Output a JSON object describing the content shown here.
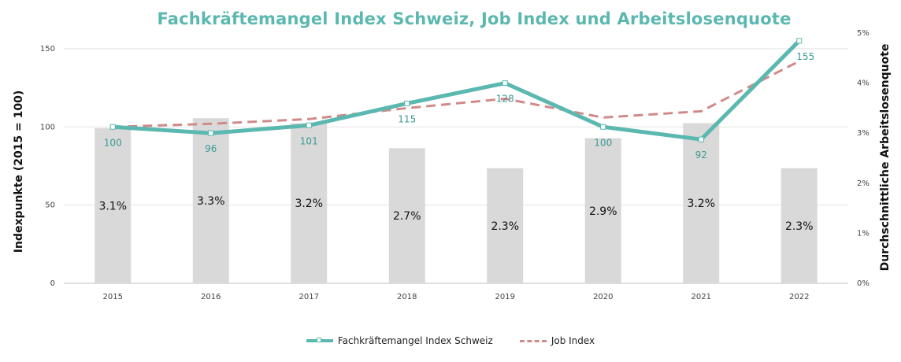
{
  "chart_data": {
    "type": "bar+line",
    "title": "Fachkräftemangel Index Schweiz, Job Index und Arbeitslosenquote",
    "categories": [
      "2015",
      "2016",
      "2017",
      "2018",
      "2019",
      "2020",
      "2021",
      "2022"
    ],
    "ylabel": "Indexpunkte (2015 = 100)",
    "y2label": "Durchschnittliche Arbeitslosenquote",
    "ylim": [
      0,
      160
    ],
    "yticks": [
      "0",
      "50",
      "100",
      "150"
    ],
    "y2lim": [
      0,
      5
    ],
    "y2ticks": [
      "0%",
      "1%",
      "2%",
      "3%",
      "4%",
      "5%"
    ],
    "grid": true,
    "legend_position": "bottom",
    "bars": {
      "axis": "secondary",
      "color": "#d9d9d9",
      "values": [
        3.1,
        3.3,
        3.2,
        2.7,
        2.3,
        2.9,
        3.2,
        2.3
      ],
      "labels": [
        "3.1%",
        "3.3%",
        "3.2%",
        "2.7%",
        "2.3%",
        "2.9%",
        "3.2%",
        "2.3%"
      ]
    },
    "series": [
      {
        "name": "Fachkräftemangel Index Schweiz",
        "axis": "primary",
        "style": "solid",
        "color": "#5bb8b0",
        "values": [
          100,
          96,
          101,
          115,
          128,
          100,
          92,
          155
        ],
        "labels": [
          "100",
          "96",
          "101",
          "115",
          "128",
          "100",
          "92",
          "155"
        ]
      },
      {
        "name": "Job Index",
        "axis": "primary",
        "style": "dashed",
        "color": "#d08a8a",
        "values": [
          100,
          102,
          105,
          112,
          118,
          106,
          110,
          142
        ]
      }
    ]
  }
}
